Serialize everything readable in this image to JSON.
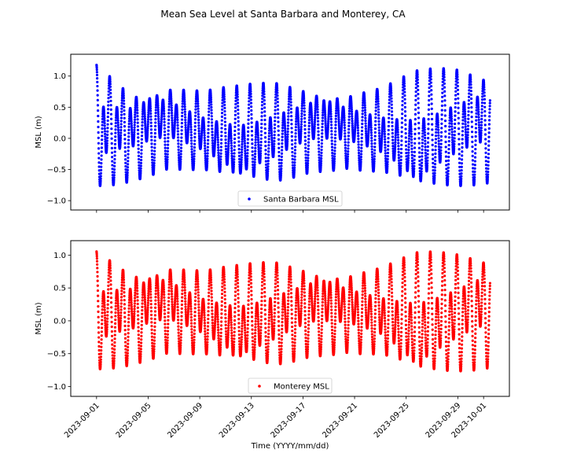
{
  "figure": {
    "title": "Mean Sea Level at Santa Barbara and Monterey, CA"
  },
  "chart_data": [
    {
      "type": "scatter",
      "ylabel": "MSL (m)",
      "xlabel": "",
      "x_range": [
        "2023-08-30",
        "2023-10-03"
      ],
      "ylim": [
        -1.15,
        1.35
      ],
      "yticks": [
        -1.0,
        -0.5,
        0.0,
        0.5,
        1.0
      ],
      "ytick_labels": [
        "−1.0",
        "−0.5",
        "0.0",
        "0.5",
        "1.0"
      ],
      "xticks_shown": false,
      "grid": false,
      "legend_position": "bottom-center",
      "series": [
        {
          "name": "Santa Barbara MSL",
          "color": "#0000ff",
          "marker_size": 2,
          "sampling": "6-minute",
          "start": "2023-09-01T00:00",
          "end": "2023-10-01T12:00",
          "approx_values": {
            "tidal_high_max": [
              1.25,
              0.85,
              0.95,
              0.8,
              0.85,
              0.95,
              0.9,
              0.8,
              0.85,
              1.1,
              1.2,
              1.15
            ],
            "tidal_low_min": [
              -0.92,
              -0.7,
              -0.5,
              -0.6,
              -0.85,
              -0.8,
              -0.55,
              -0.5,
              -0.65,
              -1.02,
              -0.88,
              -0.72
            ]
          },
          "mean": 0.2
        }
      ]
    },
    {
      "type": "scatter",
      "ylabel": "MSL (m)",
      "xlabel": "Time (YYYY/mm/dd)",
      "x_range": [
        "2023-08-30",
        "2023-10-03"
      ],
      "ylim": [
        -1.15,
        1.22
      ],
      "yticks": [
        -1.0,
        -0.5,
        0.0,
        0.5,
        1.0
      ],
      "ytick_labels": [
        "−1.0",
        "−0.5",
        "0.0",
        "0.5",
        "1.0"
      ],
      "xticks": [
        "2023-09-01",
        "2023-09-05",
        "2023-09-09",
        "2023-09-13",
        "2023-09-17",
        "2023-09-21",
        "2023-09-25",
        "2023-09-29",
        "2023-10-01"
      ],
      "xtick_labels": [
        "2023-09-01",
        "2023-09-05",
        "2023-09-09",
        "2023-09-13",
        "2023-09-17",
        "2023-09-21",
        "2023-09-25",
        "2023-09-29",
        "2023-10-01"
      ],
      "xtick_rotation_deg": 45,
      "grid": false,
      "legend_position": "bottom-center",
      "series": [
        {
          "name": "Monterey MSL",
          "color": "#ff0000",
          "marker_size": 2,
          "sampling": "6-minute",
          "start": "2023-09-01T00:00",
          "end": "2023-10-01T12:00",
          "approx_values": {
            "tidal_high_max": [
              1.12,
              0.85,
              0.95,
              0.8,
              0.85,
              0.95,
              0.9,
              0.8,
              0.85,
              1.05,
              1.1,
              1.1
            ],
            "tidal_low_min": [
              -0.88,
              -0.68,
              -0.5,
              -0.6,
              -0.82,
              -0.78,
              -0.55,
              -0.5,
              -0.62,
              -1.02,
              -0.88,
              -0.72
            ]
          },
          "mean": 0.18
        }
      ]
    }
  ]
}
